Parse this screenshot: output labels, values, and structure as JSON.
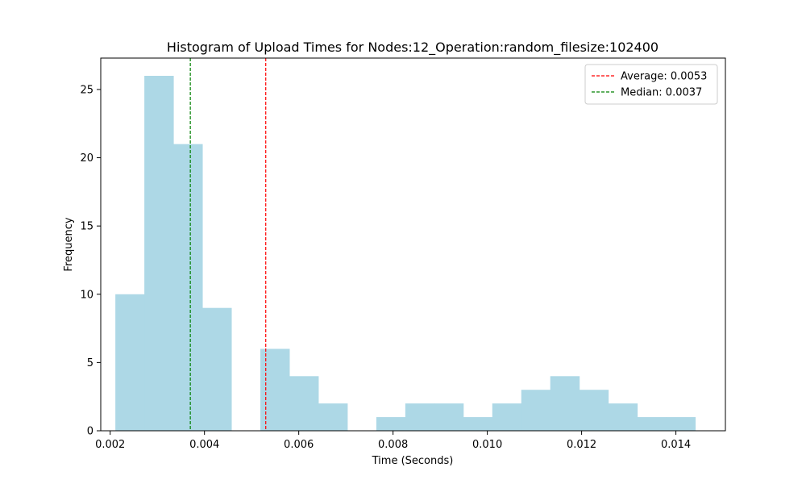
{
  "chart_data": {
    "type": "bar",
    "title": "Histogram of Upload Times for Nodes:12_Operation:random_filesize:102400",
    "xlabel": "Time (Seconds)",
    "ylabel": "Frequency",
    "xlim": [
      0.0018,
      0.01505
    ],
    "ylim": [
      0,
      27.3
    ],
    "x_ticks": [
      0.002,
      0.004,
      0.006,
      0.008,
      0.01,
      0.012,
      0.014
    ],
    "x_tick_labels": [
      "0.002",
      "0.004",
      "0.006",
      "0.008",
      "0.010",
      "0.012",
      "0.014"
    ],
    "y_ticks": [
      0,
      5,
      10,
      15,
      20,
      25
    ],
    "y_tick_labels": [
      "0",
      "5",
      "10",
      "15",
      "20",
      "25"
    ],
    "bin_start": 0.00211,
    "bin_width": 0.000615,
    "values": [
      10,
      26,
      21,
      9,
      0,
      6,
      4,
      2,
      0,
      1,
      2,
      2,
      1,
      2,
      3,
      4,
      3,
      2,
      1,
      1
    ],
    "bar_color": "#add8e6",
    "grid": false,
    "legend_position": "top-right",
    "reference_lines": [
      {
        "label": "Average: 0.0053",
        "x": 0.0053,
        "color": "#ff0000",
        "style": "dashed"
      },
      {
        "label": "Median: 0.0037",
        "x": 0.0037,
        "color": "#008000",
        "style": "dashed"
      }
    ]
  }
}
